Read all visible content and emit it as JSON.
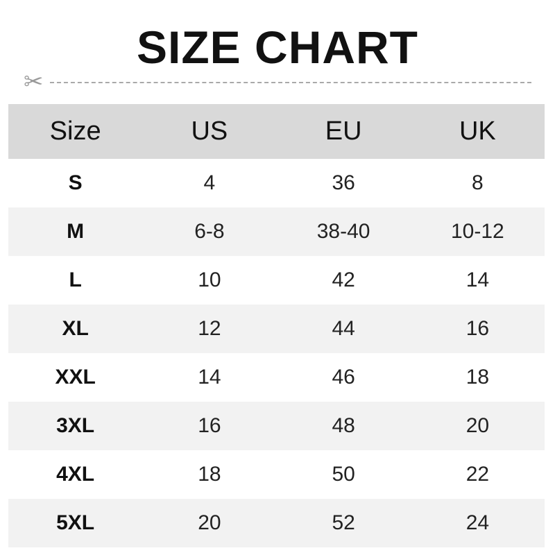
{
  "title": "SIZE CHART",
  "cut_line_icon": "scissors-icon",
  "colors": {
    "header_bg": "#d9d9d9",
    "alt_row_bg": "#f2f2f2",
    "cut_line": "#a9a9a9"
  },
  "table": {
    "headers": [
      "Size",
      "US",
      "EU",
      "UK"
    ],
    "rows": [
      [
        "S",
        "4",
        "36",
        "8"
      ],
      [
        "M",
        "6-8",
        "38-40",
        "10-12"
      ],
      [
        "L",
        "10",
        "42",
        "14"
      ],
      [
        "XL",
        "12",
        "44",
        "16"
      ],
      [
        "XXL",
        "14",
        "46",
        "18"
      ],
      [
        "3XL",
        "16",
        "48",
        "20"
      ],
      [
        "4XL",
        "18",
        "50",
        "22"
      ],
      [
        "5XL",
        "20",
        "52",
        "24"
      ]
    ]
  }
}
